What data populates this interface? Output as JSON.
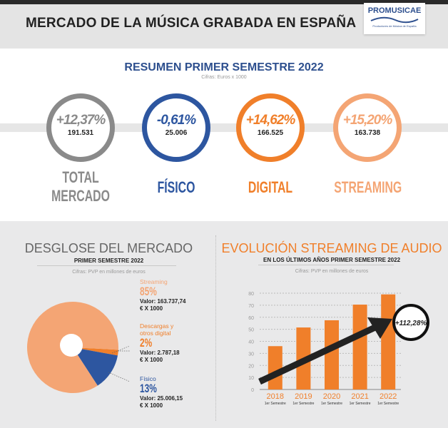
{
  "header": {
    "title": "MERCADO DE LA MÚSICA GRABADA EN ESPAÑA",
    "logo_brand": "PROMUSICAE",
    "logo_sub": "Productores de Música de España"
  },
  "summary": {
    "title": "RESUMEN PRIMER SEMESTRE 2022",
    "note": "Cifras: Euros x 1000",
    "items": [
      {
        "pct": "+12,37%",
        "value": "191.531",
        "label": "TOTAL",
        "label2": "MERCADO",
        "color": "#8a8a8a"
      },
      {
        "pct": "-0,61%",
        "value": "25.006",
        "label": "FÍSICO",
        "color": "#2d56a0"
      },
      {
        "pct": "+14,62%",
        "value": "166.525",
        "label": "DIGITAL",
        "color": "#f07f2a"
      },
      {
        "pct": "+15,20%",
        "value": "163.738",
        "label": "STREAMING",
        "color": "#f4a574"
      }
    ]
  },
  "desglose": {
    "title": "DESGLOSE DEL MERCADO",
    "subtitle": "PRIMER SEMESTRE 2022",
    "note": "Cifras: PVP en millones de euros",
    "legend": [
      {
        "name": "Streaming",
        "pct": "85%",
        "value": "Valor: 163.737,74",
        "unit": "€ X 1000",
        "color": "#f4a574"
      },
      {
        "name": "Descargas y",
        "name2": "otros digital",
        "pct": "2%",
        "value": "Valor: 2.787,18",
        "unit": "€ X 1000",
        "color": "#f07f2a"
      },
      {
        "name": "Físico",
        "pct": "13%",
        "value": "Valor: 25.006,15",
        "unit": "€ X 1000",
        "color": "#2d56a0"
      }
    ]
  },
  "evolucion": {
    "title": "EVOLUCIÓN STREAMING DE AUDIO",
    "subtitle": "EN LOS ÚLTIMOS AÑOS PRIMER SEMESTRE 2022",
    "note": "Cifras: PVP en millones de euros",
    "badge": "+112,28%",
    "sublabel": "1er Semestre"
  },
  "chart_data": [
    {
      "type": "pie",
      "title": "DESGLOSE DEL MERCADO",
      "categories": [
        "Streaming",
        "Descargas y otros digital",
        "Físico"
      ],
      "values": [
        85,
        2,
        13
      ],
      "colors": [
        "#f4a574",
        "#f07f2a",
        "#2d56a0"
      ]
    },
    {
      "type": "bar",
      "title": "EVOLUCIÓN STREAMING DE AUDIO",
      "categories": [
        "2018",
        "2019",
        "2020",
        "2021",
        "2022"
      ],
      "values": [
        36,
        51.5,
        57.5,
        70.5,
        79
      ],
      "ylim": [
        0,
        80
      ],
      "yticks": [
        0,
        10,
        20,
        30,
        40,
        50,
        60,
        70,
        80
      ],
      "grid": true,
      "color": "#f07f2a",
      "annotation": "+112,28%"
    }
  ]
}
